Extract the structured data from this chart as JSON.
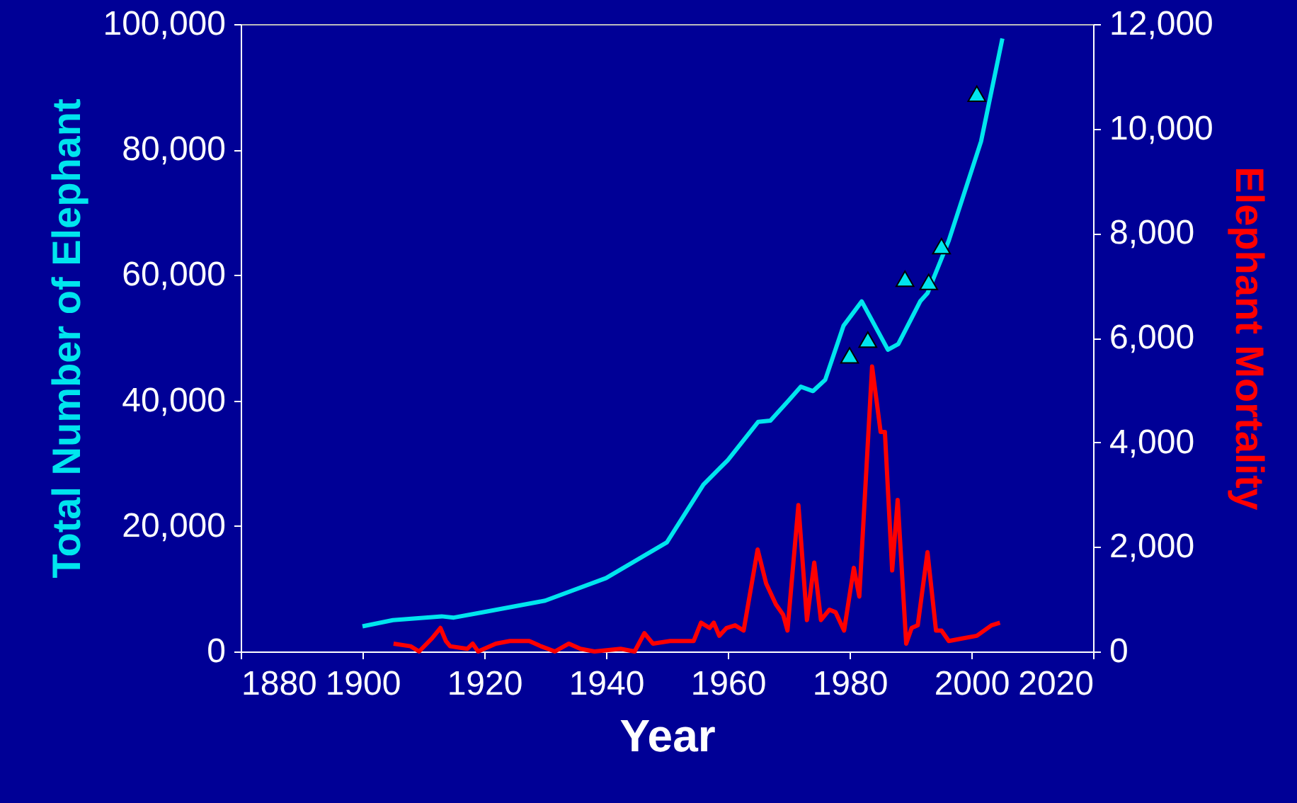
{
  "chart_data": {
    "type": "line",
    "xlabel": "Year",
    "ylabel": "Total Number of Elephant",
    "y2label": "Elephant Mortality",
    "xlim": [
      1880,
      2020
    ],
    "xticks": [
      1880,
      1900,
      1920,
      1940,
      1960,
      1980,
      2000,
      2020
    ],
    "ylim": [
      0,
      100000
    ],
    "yticks": [
      0,
      {
        "value": 20000,
        "label": "20,000"
      },
      {
        "value": 40000,
        "label": "40,000"
      },
      {
        "value": 60000,
        "label": "60,000"
      },
      {
        "value": 80000,
        "label": "80,000"
      },
      {
        "value": 100000,
        "label": "100,000"
      }
    ],
    "y2lim": [
      0,
      12000
    ],
    "y2ticks": [
      0,
      {
        "value": 2000,
        "label": "2,000"
      },
      {
        "value": 4000,
        "label": "4,000"
      },
      {
        "value": 6000,
        "label": "6,000"
      },
      {
        "value": 8000,
        "label": "8,000"
      },
      {
        "value": 10000,
        "label": "10,000"
      },
      {
        "value": 12000,
        "label": "12,000"
      }
    ],
    "grid": false,
    "series": [
      {
        "color": "#00e5ee",
        "marker": "none",
        "line_style": "solid",
        "x": [
          1900,
          1905,
          1913,
          1915,
          1920,
          1930,
          1940,
          1950,
          1956,
          1960,
          1965,
          1967,
          1970,
          1972,
          1974,
          1976,
          1979,
          1982,
          1986.3,
          1988,
          1991.6,
          1992.8,
          1996.3,
          2001.6,
          2005.1
        ],
        "values": [
          4000,
          5000,
          5600,
          5400,
          6300,
          8100,
          11700,
          17400,
          26600,
          30500,
          36600,
          36800,
          40000,
          42200,
          41500,
          43300,
          51900,
          55800,
          48100,
          49000,
          55800,
          57100,
          65500,
          81300,
          97700
        ]
      },
      {
        "type": "scatter",
        "color": "#00e5ee",
        "marker": "triangle",
        "x": [
          1980,
          1983,
          1989.1,
          1993,
          1995.1,
          2000.9
        ],
        "values": [
          47200,
          49700,
          59400,
          58900,
          64600,
          88900
        ]
      },
      {
        "axis": "y2",
        "color": "#ff0000",
        "marker": "none",
        "line_style": "solid",
        "x": [
          1905.1,
          1907.9,
          1909.3,
          1911.4,
          1912.8,
          1913.7,
          1914.4,
          1917.2,
          1918.1,
          1919,
          1921.9,
          1924.2,
          1927.4,
          1929.3,
          1931.6,
          1933.9,
          1935.8,
          1938.1,
          1942.4,
          1944.7,
          1946.3,
          1947.7,
          1950.5,
          1954.4,
          1955.6,
          1957,
          1957.7,
          1958.6,
          1959.8,
          1961.2,
          1962.6,
          1964.9,
          1966.3,
          1967.9,
          1969.1,
          1969.8,
          1971.6,
          1973,
          1974.2,
          1975.3,
          1976.7,
          1977.7,
          1979.1,
          1980.7,
          1981.6,
          1983.7,
          1985.1,
          1985.8,
          1987,
          1987.9,
          1989.3,
          1990.2,
          1991.2,
          1992.8,
          1994.2,
          1995.1,
          1996.3,
          1998.6,
          2000.9,
          2003.3,
          2004.7
        ],
        "values": [
          150,
          100,
          0,
          250,
          450,
          200,
          100,
          50,
          150,
          0,
          150,
          200,
          200,
          100,
          0,
          150,
          50,
          0,
          50,
          0,
          350,
          150,
          200,
          200,
          550,
          450,
          550,
          300,
          450,
          500,
          400,
          1950,
          1300,
          900,
          700,
          400,
          2800,
          600,
          1700,
          600,
          800,
          750,
          400,
          1600,
          1050,
          5450,
          4200,
          4200,
          1550,
          2900,
          150,
          450,
          500,
          1900,
          400,
          400,
          200,
          250,
          300,
          500,
          550
        ]
      }
    ]
  }
}
